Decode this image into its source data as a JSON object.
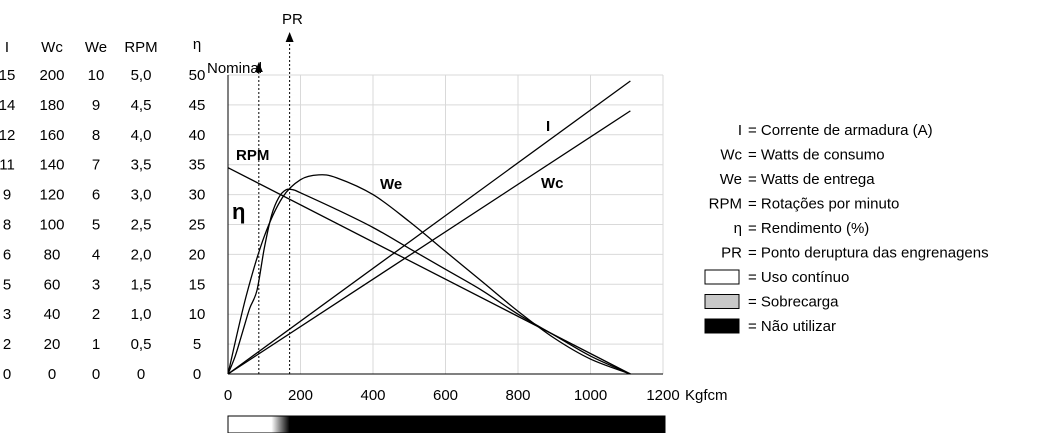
{
  "chart_data": {
    "type": "line",
    "xlabel": "Kgfcm",
    "x_ticks": [
      0,
      200,
      400,
      600,
      800,
      1000,
      1200
    ],
    "xlim": [
      0,
      1200
    ],
    "ylim": [
      0,
      50
    ],
    "grid": true,
    "scales": {
      "headers": [
        "I",
        "Wc",
        "We",
        "RPM",
        "η"
      ],
      "columns": [
        [
          "15",
          "14",
          "12",
          "11",
          "9",
          "8",
          "6",
          "5",
          "3",
          "2",
          "0"
        ],
        [
          "200",
          "180",
          "160",
          "140",
          "120",
          "100",
          "80",
          "60",
          "40",
          "20",
          "0"
        ],
        [
          "10",
          "9",
          "8",
          "7",
          "6",
          "5",
          "4",
          "3",
          "2",
          "1",
          "0"
        ],
        [
          "5,0",
          "4,5",
          "4,0",
          "3,5",
          "3,0",
          "2,5",
          "2,0",
          "1,5",
          "1,0",
          "0,5",
          "0"
        ],
        [
          "50",
          "45",
          "40",
          "35",
          "30",
          "25",
          "20",
          "15",
          "10",
          "5",
          "0"
        ]
      ]
    },
    "series": [
      {
        "name": "I",
        "label": "I",
        "x": [
          0,
          1110
        ],
        "y": [
          0,
          49
        ]
      },
      {
        "name": "Wc",
        "label": "Wc",
        "x": [
          0,
          1110
        ],
        "y": [
          0,
          44
        ]
      },
      {
        "name": "RPM",
        "label": "RPM",
        "x": [
          0,
          1110
        ],
        "y": [
          34.5,
          0
        ]
      },
      {
        "name": "We",
        "label": "We",
        "x": [
          0,
          50,
          100,
          150,
          200,
          250,
          300,
          400,
          500,
          600,
          700,
          800,
          900,
          1000,
          1110
        ],
        "y": [
          0,
          13,
          23,
          29.5,
          32.5,
          33.3,
          32.8,
          30,
          25.5,
          20.5,
          15.5,
          10.5,
          6,
          2.5,
          0
        ]
      },
      {
        "name": "η",
        "label": "η",
        "x": [
          0,
          20,
          40,
          60,
          80,
          100,
          120,
          140,
          160,
          180,
          200,
          300,
          400,
          500,
          600,
          700,
          800,
          900,
          1000,
          1110
        ],
        "y": [
          0,
          3,
          7,
          11,
          14,
          21,
          26.5,
          29.5,
          30.8,
          30.8,
          30.3,
          27.5,
          24.5,
          21,
          17.5,
          14,
          10,
          6.5,
          3,
          0
        ]
      }
    ],
    "markers": [
      {
        "label": "Nominal",
        "x": 85
      },
      {
        "label": "PR",
        "x": 170
      }
    ]
  },
  "legend": [
    {
      "symbol": "I",
      "text": "Corrente de armadura (A)"
    },
    {
      "symbol": "Wc",
      "text": "Watts de consumo"
    },
    {
      "symbol": "We",
      "text": "Watts de entrega"
    },
    {
      "symbol": "RPM",
      "text": "Rotações por minuto"
    },
    {
      "symbol": "η",
      "text": "Rendimento (%)"
    },
    {
      "symbol": "PR",
      "text": "Ponto deruptura das engrenagens"
    }
  ],
  "swatches": [
    {
      "color": "#ffffff",
      "text": "Uso contínuo"
    },
    {
      "color": "#c8c8c8",
      "text": "Sobrecarga"
    },
    {
      "color": "#000000",
      "text": "Não utilizar"
    }
  ],
  "usage_bar": {
    "white_end": 120,
    "black_start": 170
  }
}
